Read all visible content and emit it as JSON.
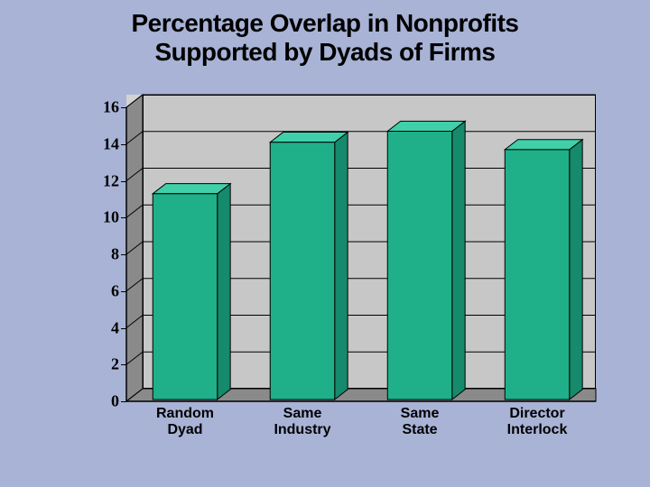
{
  "slide": {
    "background_color": "#a8b3d6"
  },
  "title": {
    "line1": "Percentage Overlap in Nonprofits",
    "line2": "Supported by Dyads of Firms",
    "fontsize": 28,
    "color": "#000000",
    "font_family": "Verdana, Geneva, sans-serif",
    "font_weight": "bold"
  },
  "chart": {
    "type": "bar3d",
    "categories": [
      "Random Dyad",
      "Same Industry",
      "Same State",
      "Director Interlock"
    ],
    "values": [
      11.2,
      14.0,
      14.6,
      13.6
    ],
    "ylim": [
      0,
      16
    ],
    "ytick_step": 2,
    "yticks": [
      0,
      2,
      4,
      6,
      8,
      10,
      12,
      14,
      16
    ],
    "bar_front_color": "#1fb08a",
    "bar_top_color": "#3fd0aa",
    "bar_side_color": "#168a6c",
    "plot_bg_color": "#d3d3d3",
    "back_wall_color": "#c7c7c7",
    "side_wall_color": "#8a8a8a",
    "floor_color": "#8a8a8a",
    "grid_color": "#000000",
    "axis_label_fontsize": 18,
    "axis_label_font": "Times New Roman, serif",
    "axis_label_weight": "bold",
    "cat_label_fontsize": 16,
    "cat_label_font": "Verdana, Geneva, sans-serif",
    "cat_label_weight": "bold",
    "depth_dx": 18,
    "depth_dy": 14,
    "bar_width_ratio": 0.55
  }
}
